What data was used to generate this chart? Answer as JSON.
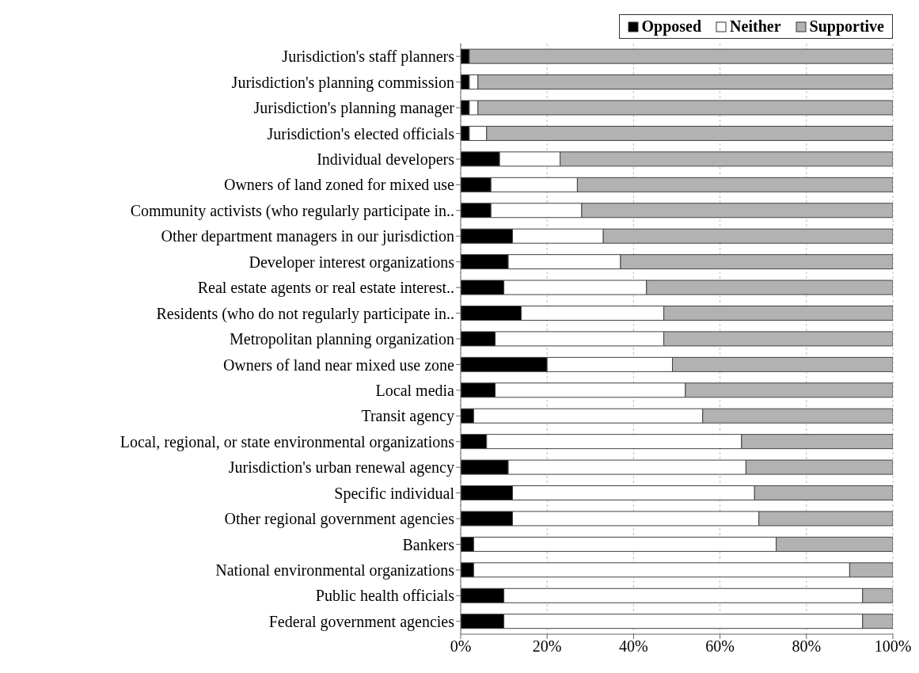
{
  "chart_data": {
    "type": "bar",
    "orientation": "horizontal",
    "stacked": true,
    "categories": [
      "Jurisdiction's staff planners",
      "Jurisdiction's planning commission",
      "Jurisdiction's planning manager",
      "Jurisdiction's elected officials",
      "Individual developers",
      "Owners of land zoned for mixed use",
      "Community activists (who regularly participate in..",
      "Other department managers in our jurisdiction",
      "Developer interest organizations",
      "Real estate agents or real estate interest..",
      "Residents (who do not regularly participate in..",
      "Metropolitan planning organization",
      "Owners of land near mixed use zone",
      "Local media",
      "Transit agency",
      "Local, regional, or state environmental organizations",
      "Jurisdiction's urban renewal agency",
      "Specific individual",
      "Other regional government agencies",
      "Bankers",
      "National environmental organizations",
      "Public health officials",
      "Federal government agencies"
    ],
    "series": [
      {
        "name": "Opposed",
        "color": "#000000",
        "values": [
          2,
          2,
          2,
          2,
          9,
          7,
          7,
          12,
          11,
          10,
          14,
          8,
          20,
          8,
          3,
          6,
          11,
          12,
          12,
          3,
          3,
          10,
          10
        ]
      },
      {
        "name": "Neither",
        "color": "#ffffff",
        "values": [
          0,
          2,
          2,
          4,
          14,
          20,
          21,
          21,
          26,
          33,
          33,
          39,
          29,
          44,
          53,
          59,
          55,
          56,
          57,
          70,
          87,
          83,
          83
        ]
      },
      {
        "name": "Supportive",
        "color": "#b2b2b2",
        "values": [
          98,
          96,
          96,
          94,
          77,
          73,
          72,
          67,
          63,
          57,
          53,
          53,
          51,
          48,
          44,
          35,
          34,
          32,
          31,
          27,
          10,
          7,
          7
        ]
      }
    ],
    "xlim": [
      0,
      100
    ],
    "xticks": [
      {
        "value": 0,
        "label": "0%"
      },
      {
        "value": 20,
        "label": "20%"
      },
      {
        "value": 40,
        "label": "40%"
      },
      {
        "value": 60,
        "label": "60%"
      },
      {
        "value": 80,
        "label": "80%"
      },
      {
        "value": 100,
        "label": "100%"
      }
    ],
    "grid": "x",
    "legend": "top right"
  }
}
